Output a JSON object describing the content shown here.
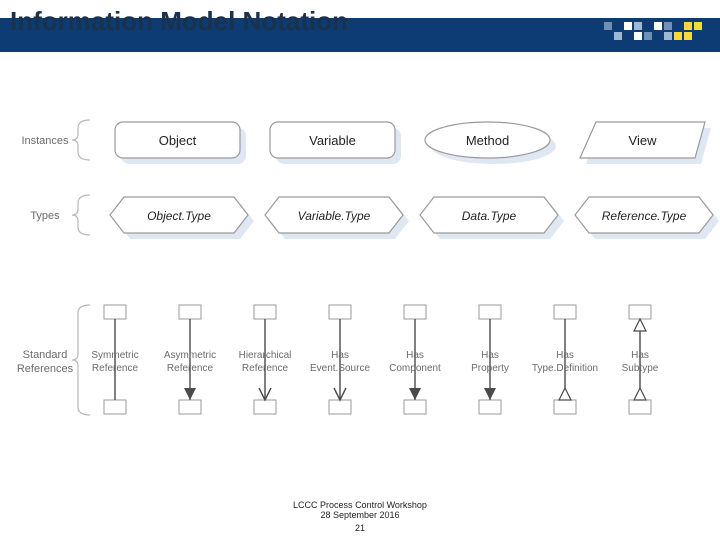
{
  "title": "Information Model Notation",
  "banner_color": "#0d3b73",
  "accent_yellow": "#f7d83f",
  "footer_line1": "LCCC Process Control Workshop",
  "footer_line2": "28 September 2016",
  "page_number": "21",
  "diagram": {
    "background": "#ffffff",
    "label_color": "#6b6b6b",
    "shape_text_color": "#232323",
    "shape_fill": "#ffffff",
    "shape_stroke": "#9a9a9a",
    "shadow_fill": "#dfe8f2",
    "bracket_stroke": "#b8b8b8",
    "ref_line_stroke": "#4a4a4a",
    "ref_box_stroke": "#9a9a9a",
    "ref_box_fill": "#ffffff",
    "font_family": "Verdana, Arial, sans-serif",
    "row_labels": [
      "Instances",
      "Types",
      "Standard References"
    ],
    "instances": [
      {
        "label": "Object",
        "shape": "roundrect"
      },
      {
        "label": "Variable",
        "shape": "roundrect"
      },
      {
        "label": "Method",
        "shape": "ellipse"
      },
      {
        "label": "View",
        "shape": "trapezoid"
      }
    ],
    "types": [
      {
        "label": "Object.Type",
        "style": "italic"
      },
      {
        "label": "Variable.Type",
        "style": "italic"
      },
      {
        "label": "Data.Type",
        "style": "italic"
      },
      {
        "label": "Reference.Type",
        "style": "italic"
      }
    ],
    "references": [
      {
        "label_top": "Symmetric",
        "label_bot": "Reference",
        "top_end": "none",
        "bot_end": "none"
      },
      {
        "label_top": "Asymmetric",
        "label_bot": "Reference",
        "top_end": "none",
        "bot_end": "closed-down"
      },
      {
        "label_top": "Hierarchical",
        "label_bot": "Reference",
        "top_end": "none",
        "bot_end": "open-down"
      },
      {
        "label_top": "Has",
        "label_bot": "Event.Source",
        "top_end": "none",
        "bot_end": "open-down"
      },
      {
        "label_top": "Has",
        "label_bot": "Component",
        "top_end": "none",
        "bot_end": "closed-down"
      },
      {
        "label_top": "Has",
        "label_bot": "Property",
        "top_end": "none",
        "bot_end": "closed-down"
      },
      {
        "label_top": "Has",
        "label_bot": "Type.Definition",
        "top_end": "none",
        "bot_end": "tri-up"
      },
      {
        "label_top": "Has",
        "label_bot": "Subtype",
        "top_end": "tri-up",
        "bot_end": "tri-up"
      }
    ]
  }
}
